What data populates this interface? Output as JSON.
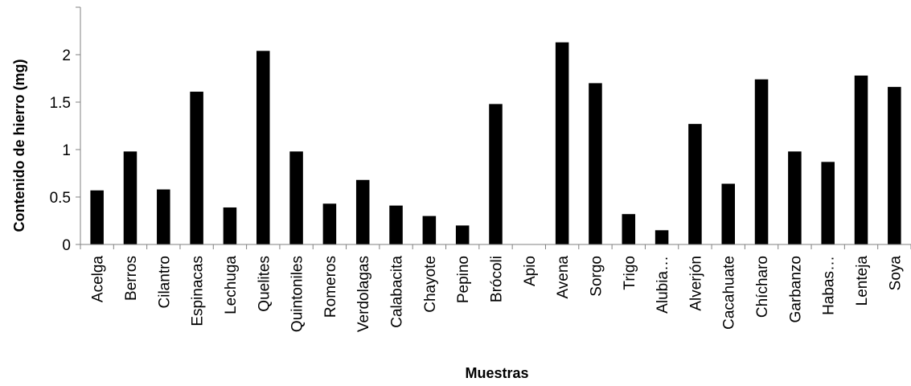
{
  "chart_data": {
    "type": "bar",
    "title": "",
    "xlabel": "Muestras",
    "ylabel": "Contenido de hierro (mg)",
    "ylim": [
      0,
      2.5
    ],
    "yticks": [
      "0",
      "0.5",
      "1",
      "1.5",
      "2"
    ],
    "grid": false,
    "legend": "none",
    "bar_color": "#000000",
    "categories": [
      "Acelga",
      "Berros",
      "Cilantro",
      "Espinacas",
      "Lechuga",
      "Quelites",
      "Quintoniles",
      "Romeros",
      "Verdolagas",
      "Calabacita",
      "Chayote",
      "Pepino",
      "Brócoli",
      "Apio",
      "Avena",
      "Sorgo",
      "Trigo",
      "Alubia…",
      "Alverjón",
      "Cacahuate",
      "Chícharo",
      "Garbanzo",
      "Habas…",
      "Lenteja",
      "Soya"
    ],
    "values": [
      0.57,
      0.98,
      0.58,
      1.61,
      0.39,
      2.04,
      0.98,
      0.43,
      0.68,
      0.41,
      0.3,
      0.2,
      1.48,
      0.0,
      2.13,
      1.7,
      0.32,
      0.15,
      1.27,
      0.64,
      1.74,
      0.98,
      0.87,
      1.78,
      1.66
    ]
  }
}
